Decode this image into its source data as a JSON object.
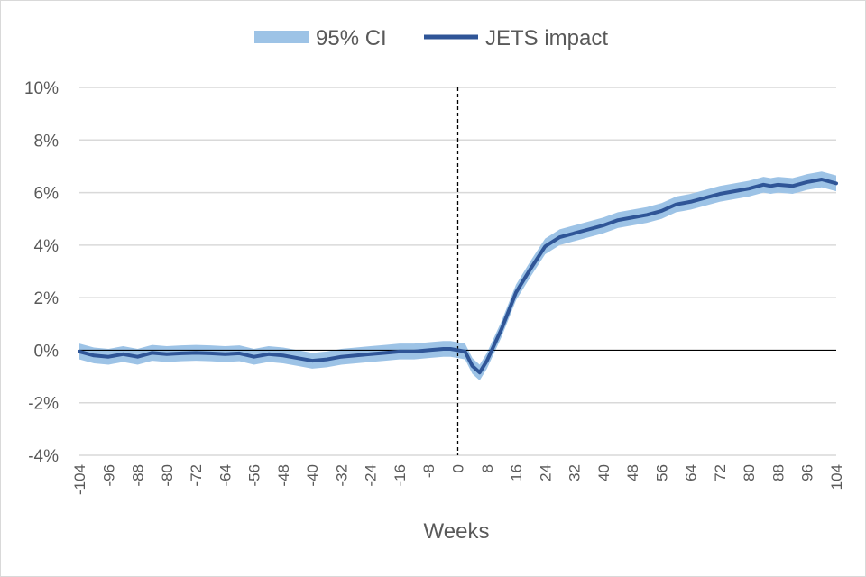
{
  "chart_data": {
    "type": "line",
    "title": "",
    "xlabel": "Weeks",
    "ylabel": "",
    "xlim": [
      -104,
      104
    ],
    "ylim": [
      -4,
      10
    ],
    "grid": true,
    "legend_position": "top",
    "y_ticks": [
      -4,
      -2,
      0,
      2,
      4,
      6,
      8,
      10
    ],
    "y_tick_labels": [
      "-4%",
      "-2%",
      "0%",
      "2%",
      "4%",
      "6%",
      "8%",
      "10%"
    ],
    "x_ticks": [
      -104,
      -96,
      -88,
      -80,
      -72,
      -64,
      -56,
      -48,
      -40,
      -32,
      -24,
      -16,
      -8,
      0,
      8,
      16,
      24,
      32,
      40,
      48,
      56,
      64,
      72,
      80,
      88,
      96,
      104
    ],
    "x_tick_labels": [
      "-104",
      "-96",
      "-88",
      "-80",
      "-72",
      "-64",
      "-56",
      "-48",
      "-40",
      "-32",
      "-24",
      "-16",
      "-8",
      "0",
      "8",
      "16",
      "24",
      "32",
      "40",
      "48",
      "56",
      "64",
      "72",
      "80",
      "88",
      "96",
      "104"
    ],
    "reference_line_x": 0,
    "series": [
      {
        "name": "JETS impact",
        "color": "#2f5597",
        "x": [
          -104,
          -100,
          -96,
          -92,
          -88,
          -84,
          -80,
          -76,
          -72,
          -68,
          -64,
          -60,
          -56,
          -52,
          -48,
          -44,
          -40,
          -36,
          -32,
          -28,
          -24,
          -20,
          -16,
          -12,
          -8,
          -4,
          -2,
          0,
          2,
          4,
          6,
          8,
          10,
          12,
          14,
          16,
          20,
          24,
          28,
          32,
          36,
          40,
          44,
          48,
          52,
          56,
          60,
          62,
          64,
          68,
          72,
          76,
          80,
          84,
          86,
          88,
          92,
          96,
          100,
          104
        ],
        "y": [
          -0.05,
          -0.2,
          -0.25,
          -0.15,
          -0.25,
          -0.1,
          -0.15,
          -0.12,
          -0.1,
          -0.12,
          -0.15,
          -0.12,
          -0.25,
          -0.15,
          -0.2,
          -0.3,
          -0.4,
          -0.35,
          -0.25,
          -0.2,
          -0.15,
          -0.1,
          -0.05,
          -0.05,
          0.0,
          0.05,
          0.05,
          0.0,
          -0.05,
          -0.6,
          -0.85,
          -0.4,
          0.2,
          0.8,
          1.5,
          2.2,
          3.1,
          3.95,
          4.3,
          4.45,
          4.6,
          4.75,
          4.95,
          5.05,
          5.15,
          5.3,
          5.55,
          5.6,
          5.65,
          5.8,
          5.95,
          6.05,
          6.15,
          6.3,
          6.25,
          6.3,
          6.25,
          6.4,
          6.5,
          6.35
        ]
      },
      {
        "name": "95% CI",
        "type": "area",
        "color": "#9dc3e6",
        "half_width": 0.3
      }
    ]
  }
}
